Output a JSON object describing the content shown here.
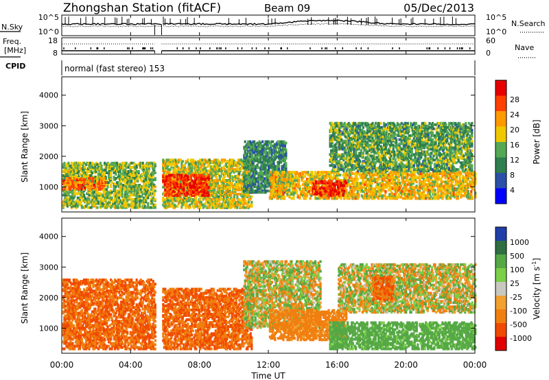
{
  "header": {
    "station": "Zhongshan Station (fitACF)",
    "beam": "Beam 09",
    "date": "05/Dec/2013"
  },
  "strip_nsky": {
    "left_label": "N.Sky",
    "left_ticks": [
      "10^5",
      "10^0"
    ],
    "right_ticks": [
      "10^5",
      "10^0"
    ],
    "right_label": "N.Search"
  },
  "strip_freq": {
    "left_label_1": "Freq.",
    "left_label_2": "[MHz]",
    "left_ticks": [
      "18",
      "8"
    ],
    "right_ticks": [
      "60",
      "0"
    ],
    "right_label": "Nave"
  },
  "cpid": {
    "label": "CPID",
    "value": "normal (fast stereo) 153"
  },
  "panels": {
    "power": {
      "ylabel": "Slant Range [km]",
      "cbar_label": "Power [dB]",
      "cbar_ticks": [
        "28",
        "24",
        "20",
        "16",
        "12",
        "8",
        "4"
      ]
    },
    "velocity": {
      "ylabel": "Slant Range [km]",
      "cbar_label": "Velocity [m s",
      "cbar_label_sup": "-1",
      "cbar_label_end": "]",
      "cbar_ticks": [
        "1000",
        "500",
        "100",
        "25",
        "-25",
        "-100",
        "-500",
        "-1000"
      ]
    }
  },
  "xaxis": {
    "label": "Time UT",
    "ticks": [
      "00:00",
      "04:00",
      "08:00",
      "12:00",
      "16:00",
      "20:00",
      "00:00"
    ]
  },
  "colors": {
    "power_scale": [
      "#e60000",
      "#ff4000",
      "#ff9900",
      "#f0c800",
      "#55a855",
      "#2f7f4f",
      "#2b50a8",
      "#0000ff"
    ],
    "velocity_scale": [
      "#1f3fa8",
      "#2e6e40",
      "#55a845",
      "#7ccf48",
      "#c8c8c0",
      "#f2a030",
      "#f07f10",
      "#f04a00",
      "#e00000"
    ]
  },
  "chart_data": [
    {
      "type": "heatmap",
      "title": "Power",
      "xlabel": "Time UT",
      "ylabel": "Slant Range [km]",
      "xlim": [
        0,
        24
      ],
      "ylim": [
        180,
        4600
      ],
      "yticks": [
        1000,
        2000,
        3000,
        4000
      ],
      "color_range_db": [
        0,
        30
      ],
      "data_gap_hours": [
        5.4,
        5.8
      ],
      "regions": [
        {
          "t_start": 0.0,
          "t_end": 5.4,
          "range_lo": 300,
          "range_hi": 1800,
          "power_db": 14
        },
        {
          "t_start": 0.0,
          "t_end": 2.5,
          "range_lo": 900,
          "range_hi": 1300,
          "power_db": 22
        },
        {
          "t_start": 5.8,
          "t_end": 11.0,
          "range_lo": 300,
          "range_hi": 1900,
          "power_db": 16
        },
        {
          "t_start": 5.8,
          "t_end": 8.5,
          "range_lo": 700,
          "range_hi": 1400,
          "power_db": 26
        },
        {
          "t_start": 10.5,
          "t_end": 13.0,
          "range_lo": 800,
          "range_hi": 2500,
          "power_db": 10
        },
        {
          "t_start": 12.0,
          "t_end": 24.0,
          "range_lo": 600,
          "range_hi": 1500,
          "power_db": 18
        },
        {
          "t_start": 14.5,
          "t_end": 16.5,
          "range_lo": 700,
          "range_hi": 1200,
          "power_db": 26
        },
        {
          "t_start": 15.5,
          "t_end": 23.8,
          "range_lo": 1500,
          "range_hi": 3100,
          "power_db": 12
        }
      ]
    },
    {
      "type": "heatmap",
      "title": "Velocity",
      "xlabel": "Time UT",
      "ylabel": "Slant Range [km]",
      "xlim": [
        0,
        24
      ],
      "ylim": [
        180,
        4600
      ],
      "yticks": [
        1000,
        2000,
        3000,
        4000
      ],
      "color_range_ms": [
        -1000,
        1000
      ],
      "data_gap_hours": [
        5.4,
        5.8
      ],
      "regions": [
        {
          "t_start": 0.0,
          "t_end": 5.4,
          "range_lo": 300,
          "range_hi": 2600,
          "velocity_ms": -300
        },
        {
          "t_start": 5.8,
          "t_end": 11.0,
          "range_lo": 300,
          "range_hi": 2300,
          "velocity_ms": -300
        },
        {
          "t_start": 10.5,
          "t_end": 15.0,
          "range_lo": 1000,
          "range_hi": 3200,
          "velocity_ms": 0
        },
        {
          "t_start": 12.0,
          "t_end": 16.5,
          "range_lo": 600,
          "range_hi": 1600,
          "velocity_ms": -150
        },
        {
          "t_start": 16.0,
          "t_end": 24.0,
          "range_lo": 1500,
          "range_hi": 3100,
          "velocity_ms": 0
        },
        {
          "t_start": 15.5,
          "t_end": 24.0,
          "range_lo": 300,
          "range_hi": 1200,
          "velocity_ms": 150
        },
        {
          "t_start": 18.0,
          "t_end": 19.2,
          "range_lo": 1900,
          "range_hi": 2700,
          "velocity_ms": -300
        }
      ]
    }
  ]
}
